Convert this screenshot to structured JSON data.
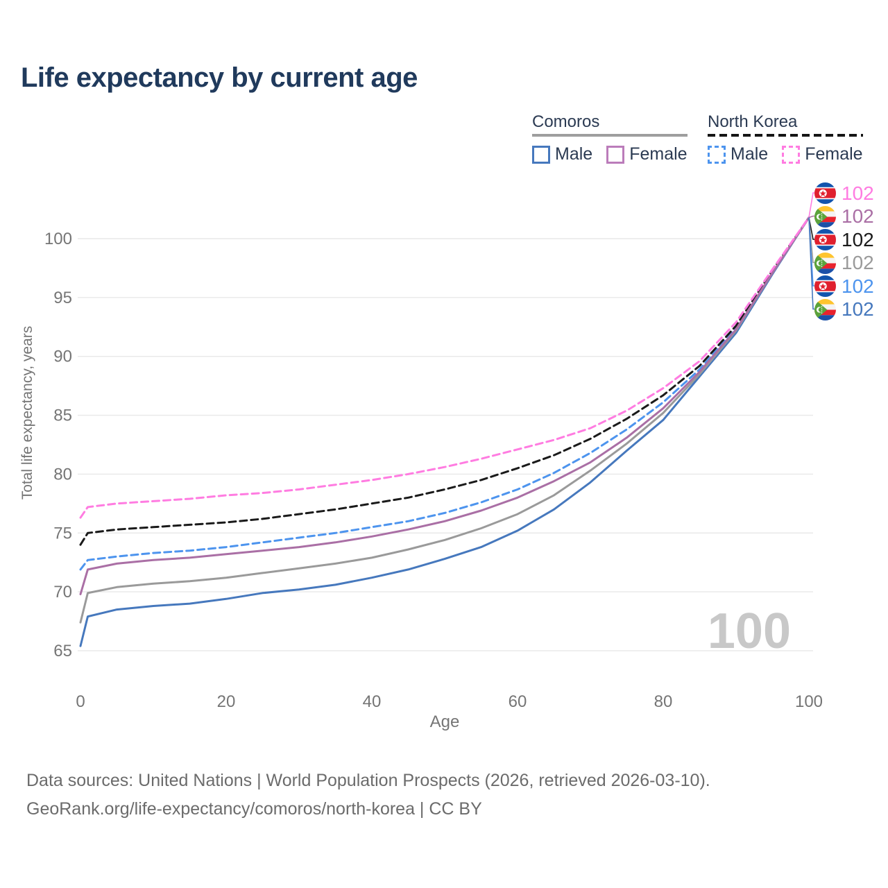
{
  "title": "Life expectancy by current age",
  "legend": {
    "groups": [
      {
        "label": "Comoros",
        "underline": "solid",
        "underline_color": "#9e9e9e",
        "items": [
          {
            "label": "Male",
            "color": "#4678bd",
            "dash": false
          },
          {
            "label": "Female",
            "color": "#bb7cba",
            "dash": false
          }
        ]
      },
      {
        "label": "North Korea",
        "underline": "dashed",
        "underline_color": "#151515",
        "items": [
          {
            "label": "Male",
            "color": "#4d94ee",
            "dash": true
          },
          {
            "label": "Female",
            "color": "#ff7ce1",
            "dash": true
          }
        ]
      }
    ]
  },
  "chart_data": {
    "type": "line",
    "title": "Life expectancy by current age",
    "xlabel": "Age",
    "ylabel": "Total life expectancy, years",
    "x_ticks": [
      0,
      20,
      40,
      60,
      80,
      100
    ],
    "y_ticks": [
      65,
      70,
      75,
      80,
      85,
      90,
      95,
      100
    ],
    "xlim": [
      0,
      100
    ],
    "ylim": [
      65,
      103
    ],
    "grid": true,
    "legend_position": "top-right",
    "watermark": "100",
    "x": [
      0,
      1,
      5,
      10,
      15,
      20,
      25,
      30,
      35,
      40,
      45,
      50,
      55,
      60,
      65,
      70,
      75,
      80,
      85,
      90,
      95,
      100
    ],
    "series": [
      {
        "name": "North Korea Female",
        "flag": "north-korea",
        "color": "#ff7ce1",
        "dash": true,
        "end_label": "102",
        "values": [
          76.3,
          77.2,
          77.5,
          77.7,
          77.9,
          78.2,
          78.4,
          78.7,
          79.1,
          79.5,
          80.0,
          80.6,
          81.3,
          82.1,
          82.9,
          83.9,
          85.4,
          87.3,
          89.6,
          92.9,
          97.4,
          101.8
        ]
      },
      {
        "name": "Comoros Female",
        "flag": "comoros",
        "color": "#aa6fa5",
        "dash": false,
        "end_label": "102",
        "values": [
          69.8,
          71.9,
          72.4,
          72.7,
          72.9,
          73.2,
          73.5,
          73.8,
          74.2,
          74.7,
          75.3,
          76.0,
          76.9,
          78.0,
          79.4,
          81.0,
          83.1,
          85.6,
          88.7,
          92.3,
          97.1,
          101.8
        ]
      },
      {
        "name": "North Korea Both sexes",
        "flag": "north-korea",
        "color": "#1a1a1a",
        "dash": true,
        "end_label": "102",
        "values": [
          74.0,
          75.0,
          75.3,
          75.5,
          75.7,
          75.9,
          76.2,
          76.6,
          77.0,
          77.5,
          78.0,
          78.7,
          79.5,
          80.5,
          81.6,
          83.0,
          84.7,
          86.7,
          89.2,
          92.6,
          97.3,
          101.8
        ]
      },
      {
        "name": "Comoros Both sexes",
        "flag": "comoros",
        "color": "#9a9a9a",
        "dash": false,
        "end_label": "102",
        "values": [
          67.4,
          69.9,
          70.4,
          70.7,
          70.9,
          71.2,
          71.6,
          72.0,
          72.4,
          72.9,
          73.6,
          74.4,
          75.4,
          76.6,
          78.2,
          80.3,
          82.6,
          85.2,
          88.5,
          92.2,
          97.1,
          101.8
        ]
      },
      {
        "name": "North Korea Male",
        "flag": "north-korea",
        "color": "#4d94ee",
        "dash": true,
        "end_label": "102",
        "values": [
          71.9,
          72.7,
          73.0,
          73.3,
          73.5,
          73.8,
          74.2,
          74.6,
          75.0,
          75.5,
          76.0,
          76.7,
          77.6,
          78.7,
          80.1,
          81.8,
          83.8,
          86.1,
          88.9,
          92.4,
          97.2,
          101.8
        ]
      },
      {
        "name": "Comoros Male",
        "flag": "comoros",
        "color": "#4678bd",
        "dash": false,
        "end_label": "102",
        "values": [
          65.4,
          67.9,
          68.5,
          68.8,
          69.0,
          69.4,
          69.9,
          70.2,
          70.6,
          71.2,
          71.9,
          72.8,
          73.8,
          75.2,
          77.0,
          79.3,
          82.0,
          84.6,
          88.3,
          92.0,
          97.0,
          101.8
        ]
      }
    ]
  },
  "footer": {
    "line1": "Data sources: United Nations | World Population Prospects (2026, retrieved 2026-03-10).",
    "line2": "GeoRank.org/life-expectancy/comoros/north-korea | CC BY"
  },
  "colors": {
    "title": "#203a5c",
    "axis_text": "#757575",
    "grid": "#e8e8e8",
    "watermark": "#c8c8c8",
    "footer_text": "#6b6b6b"
  }
}
